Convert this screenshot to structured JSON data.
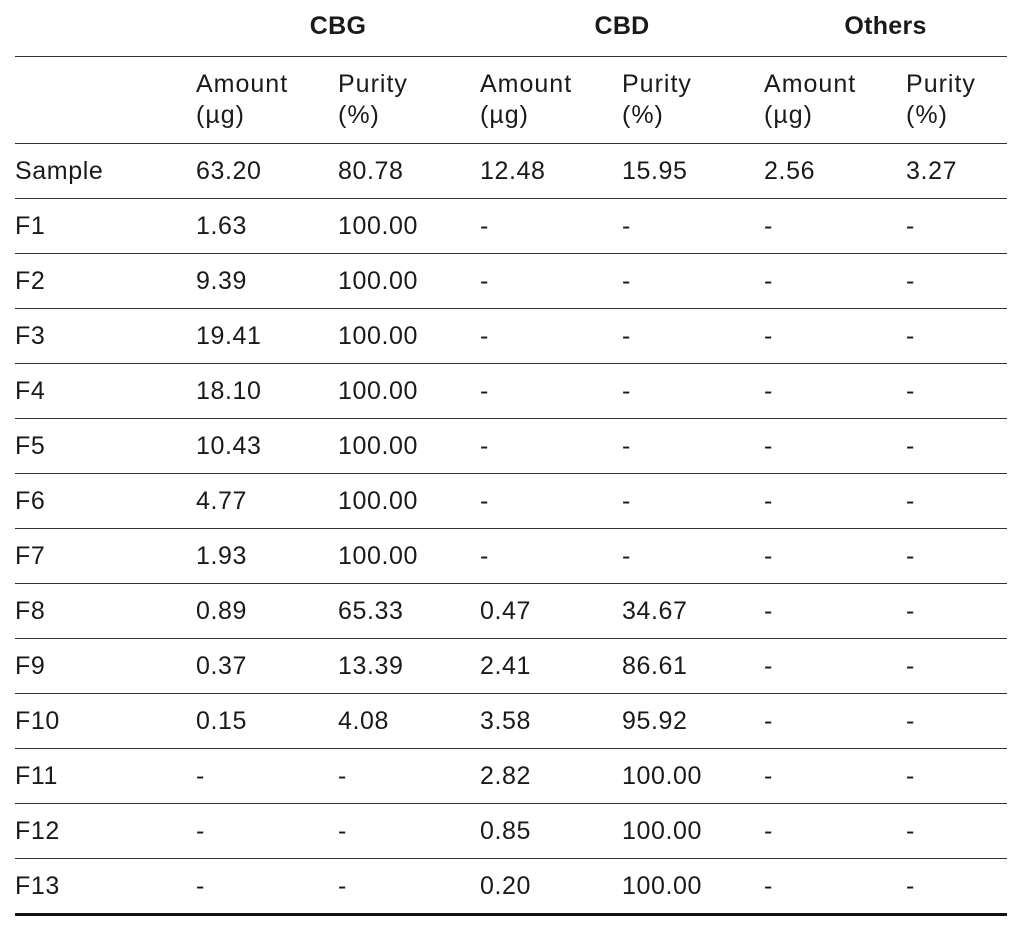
{
  "groups": [
    "CBG",
    "CBD",
    "Others"
  ],
  "subheaders": {
    "amount_line1": "Amount",
    "amount_line2": "(µg)",
    "purity_line1": "Purity",
    "purity_line2": "(%)"
  },
  "rows": [
    {
      "label": "Sample",
      "cells": [
        "63.20",
        "80.78",
        "12.48",
        "15.95",
        "2.56",
        "3.27"
      ]
    },
    {
      "label": "F1",
      "cells": [
        "1.63",
        "100.00",
        "-",
        "-",
        "-",
        "-"
      ]
    },
    {
      "label": "F2",
      "cells": [
        "9.39",
        "100.00",
        "-",
        "-",
        "-",
        "-"
      ]
    },
    {
      "label": "F3",
      "cells": [
        "19.41",
        "100.00",
        "-",
        "-",
        "-",
        "-"
      ]
    },
    {
      "label": "F4",
      "cells": [
        "18.10",
        "100.00",
        "-",
        "-",
        "-",
        "-"
      ]
    },
    {
      "label": "F5",
      "cells": [
        "10.43",
        "100.00",
        "-",
        "-",
        "-",
        "-"
      ]
    },
    {
      "label": "F6",
      "cells": [
        "4.77",
        "100.00",
        "-",
        "-",
        "-",
        "-"
      ]
    },
    {
      "label": "F7",
      "cells": [
        "1.93",
        "100.00",
        "-",
        "-",
        "-",
        "-"
      ]
    },
    {
      "label": "F8",
      "cells": [
        "0.89",
        "65.33",
        "0.47",
        "34.67",
        "-",
        "-"
      ]
    },
    {
      "label": "F9",
      "cells": [
        "0.37",
        "13.39",
        "2.41",
        "86.61",
        "-",
        "-"
      ]
    },
    {
      "label": "F10",
      "cells": [
        "0.15",
        "4.08",
        "3.58",
        "95.92",
        "-",
        "-"
      ]
    },
    {
      "label": "F11",
      "cells": [
        "-",
        "-",
        "2.82",
        "100.00",
        "-",
        "-"
      ]
    },
    {
      "label": "F12",
      "cells": [
        "-",
        "-",
        "0.85",
        "100.00",
        "-",
        "-"
      ]
    },
    {
      "label": "F13",
      "cells": [
        "-",
        "-",
        "0.20",
        "100.00",
        "-",
        "-"
      ]
    }
  ]
}
